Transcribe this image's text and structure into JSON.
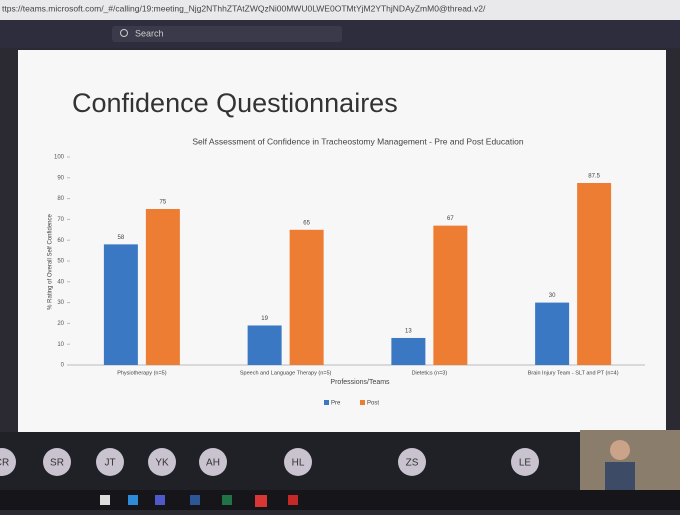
{
  "browser": {
    "url": "ttps://teams.microsoft.com/_#/calling/19:meeting_Njg2NThhZTAtZWQzNi00MWU0LWE0OTMtYjM2YThjNDAyZmM0@thread.v2/"
  },
  "teams": {
    "search": "Search"
  },
  "slide": {
    "title": "Confidence Questionnaires"
  },
  "chart_data": {
    "type": "bar",
    "title": "Self Assessment of Confidence in Tracheostomy Management - Pre and Post Education",
    "x_label": "Professions/Teams",
    "y_label": "% Rating of Overall Self Confidence",
    "categories": [
      "Physiotherapy (n=5)",
      "Speech and Language Therapy (n=5)",
      "Dietetics (n=3)",
      "Brain Injury Team - SLT and PT (n=4)"
    ],
    "series": [
      {
        "name": "Pre",
        "color": "#3b78c3",
        "values": [
          58,
          19,
          13,
          30
        ]
      },
      {
        "name": "Post",
        "color": "#ee7d34",
        "values": [
          75,
          65,
          67,
          87.5
        ]
      }
    ],
    "ylim": [
      0,
      100
    ],
    "yticks": [
      0,
      10,
      20,
      30,
      40,
      50,
      60,
      70,
      80,
      90,
      100
    ],
    "legend": "bottom"
  },
  "participants": [
    "CR",
    "SR",
    "JT",
    "YK",
    "AH",
    "HL",
    "ZS",
    "LE"
  ]
}
